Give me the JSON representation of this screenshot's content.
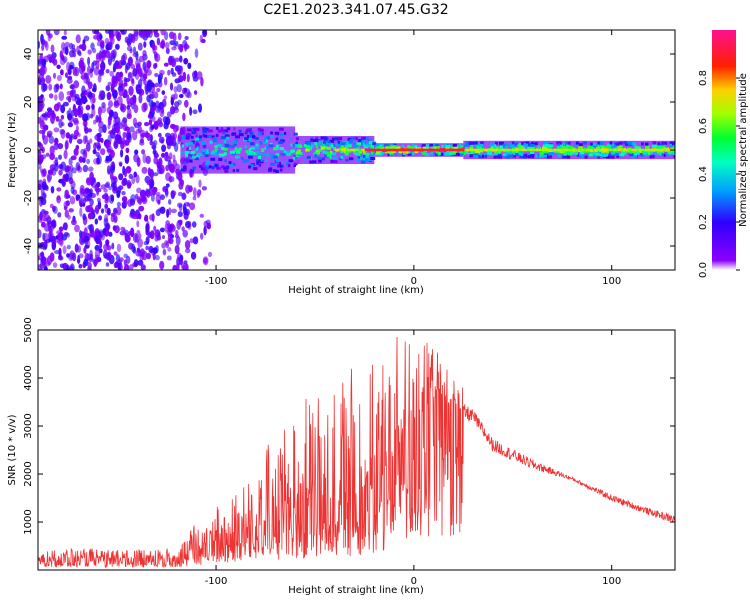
{
  "title": "C2E1.2023.341.07.45.G32",
  "chart_data": [
    {
      "type": "heatmap",
      "title": "C2E1.2023.341.07.45.G32",
      "xlabel": "Height of straight line (km)",
      "ylabel": "Frequency (Hz)",
      "xlim": [
        -190,
        132
      ],
      "ylim": [
        -50,
        50
      ],
      "xticks": [
        -100,
        0,
        100
      ],
      "yticks": [
        -40,
        -20,
        0,
        20,
        40
      ],
      "colorbar": {
        "label": "Normalized spectral amplitude",
        "range": [
          0.0,
          1.0
        ],
        "ticks": [
          0.0,
          0.2,
          0.4,
          0.6,
          0.8
        ],
        "colormap": "rainbow (purple-blue-cyan-green-yellow-red-pink)"
      },
      "description_points": [
        {
          "x_range": [
            -190,
            -118
          ],
          "freq_range": [
            -50,
            50
          ],
          "amplitude": 0.05,
          "note": "scattered low-amplitude noise"
        },
        {
          "x_range": [
            -118,
            -60
          ],
          "freq_range": [
            -9,
            9
          ],
          "amplitude": 0.45
        },
        {
          "x_range": [
            -60,
            -20
          ],
          "freq_range": [
            -5,
            5
          ],
          "amplitude": 0.6
        },
        {
          "x_range": [
            -20,
            25
          ],
          "freq_range": [
            -2,
            2
          ],
          "amplitude": 0.9
        },
        {
          "x_range": [
            25,
            132
          ],
          "freq_range": [
            -3,
            3
          ],
          "amplitude": 0.7
        }
      ],
      "grid": false
    },
    {
      "type": "line",
      "xlabel": "Height of straight line (km)",
      "ylabel": "SNR (10 * v/v)",
      "xlim": [
        -190,
        132
      ],
      "ylim": [
        0,
        5000
      ],
      "xticks": [
        -100,
        0,
        100
      ],
      "yticks": [
        1000,
        2000,
        3000,
        4000,
        5000
      ],
      "color": "#ee3333",
      "envelope_x": [
        -190,
        -150,
        -120,
        -110,
        -100,
        -80,
        -60,
        -40,
        -20,
        -10,
        0,
        10,
        20,
        30,
        40,
        60,
        80,
        100,
        120,
        132
      ],
      "envelope_mean": [
        250,
        250,
        250,
        400,
        600,
        900,
        1100,
        1300,
        1600,
        2400,
        3000,
        3600,
        3400,
        3200,
        2600,
        2200,
        1900,
        1500,
        1200,
        1050
      ],
      "envelope_peak": [
        450,
        450,
        450,
        1000,
        1400,
        2300,
        3300,
        4400,
        4300,
        5000,
        4800,
        4700,
        4000,
        3600,
        3000,
        2500,
        2000,
        1700,
        1400,
        1300
      ],
      "grid": false
    }
  ]
}
